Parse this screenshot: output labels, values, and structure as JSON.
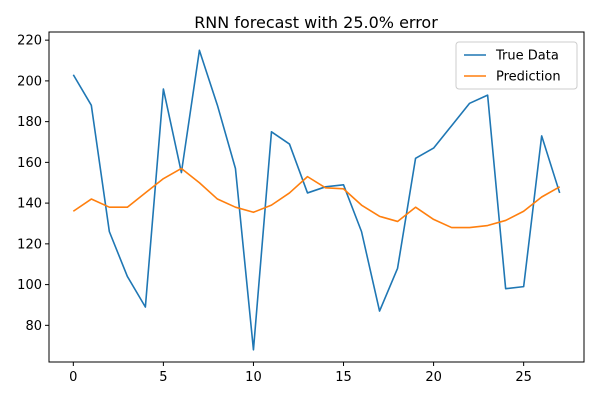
{
  "chart_data": {
    "type": "line",
    "title": "RNN forecast with 25.0% error",
    "xlabel": "",
    "ylabel": "",
    "xlim": [
      -1.35,
      28.35
    ],
    "ylim": [
      62,
      224
    ],
    "x_ticks": [
      0,
      5,
      10,
      15,
      20,
      25
    ],
    "y_ticks": [
      80,
      100,
      120,
      140,
      160,
      180,
      200,
      220
    ],
    "grid": false,
    "legend_position": "upper right",
    "x": [
      0,
      1,
      2,
      3,
      4,
      5,
      6,
      7,
      8,
      9,
      10,
      11,
      12,
      13,
      14,
      15,
      16,
      17,
      18,
      19,
      20,
      21,
      22,
      23,
      24,
      25,
      26,
      27
    ],
    "series": [
      {
        "name": "True Data",
        "color": "#1f77b4",
        "values": [
          203,
          188,
          126,
          104,
          89,
          196,
          155,
          215,
          188,
          157,
          68,
          175,
          169,
          145,
          148,
          149,
          126,
          87,
          108,
          162,
          167,
          178,
          189,
          193,
          98,
          99,
          173,
          145
        ]
      },
      {
        "name": "Prediction",
        "color": "#ff7f0e",
        "values": [
          136,
          142,
          138,
          138,
          145,
          152,
          157,
          150,
          142,
          138,
          135.5,
          139,
          145,
          153,
          147.5,
          147,
          139,
          133.5,
          131,
          138,
          132,
          128,
          128,
          129,
          131.5,
          136,
          143,
          148
        ]
      }
    ]
  }
}
